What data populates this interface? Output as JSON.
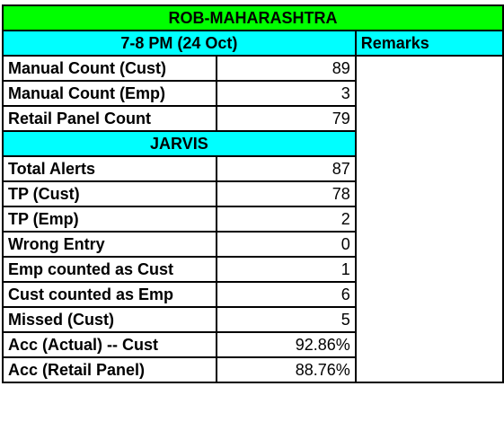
{
  "colors": {
    "title_bg": "#00ff00",
    "header_bg": "#00ffff",
    "cell_bg": "#ffffff",
    "border": "#000000"
  },
  "title": "ROB-MAHARASHTRA",
  "time_header": "7-8 PM (24 Oct)",
  "remarks_header": "Remarks",
  "rows_top": [
    {
      "label": "Manual Count (Cust)",
      "value": "89"
    },
    {
      "label": "Manual Count (Emp)",
      "value": "3"
    },
    {
      "label": "Retail Panel Count",
      "value": "79"
    }
  ],
  "section_header": "JARVIS",
  "rows_jarvis": [
    {
      "label": "Total Alerts",
      "value": "87"
    },
    {
      "label": "TP (Cust)",
      "value": "78"
    },
    {
      "label": "TP (Emp)",
      "value": "2"
    },
    {
      "label": "Wrong Entry",
      "value": "0"
    },
    {
      "label": "Emp counted as Cust",
      "value": "1"
    },
    {
      "label": "Cust counted as Emp",
      "value": "6"
    },
    {
      "label": "Missed (Cust)",
      "value": "5"
    },
    {
      "label": "Acc (Actual) -- Cust",
      "value": "92.86%"
    },
    {
      "label": "Acc (Retail Panel)",
      "value": "88.76%"
    }
  ]
}
